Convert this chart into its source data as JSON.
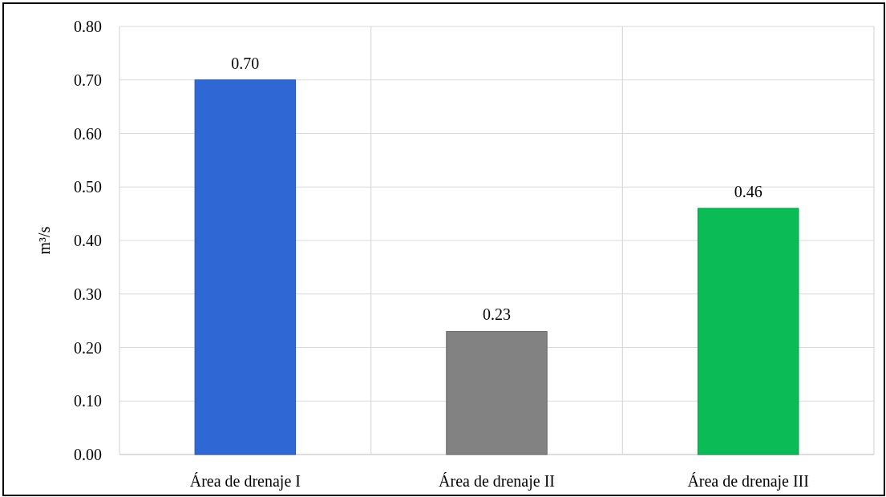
{
  "chart_data": {
    "type": "bar",
    "ylabel": "m³/s",
    "categories": [
      "Área de drenaje I",
      "Área de drenaje II",
      "Área de drenaje III"
    ],
    "values": [
      0.7,
      0.23,
      0.46
    ],
    "colors": [
      "#2f68d4",
      "#828282",
      "#0abb56"
    ],
    "ylim": [
      0,
      0.8
    ],
    "yticks": [
      {
        "value": 0,
        "label": "0.00"
      },
      {
        "value": 0.1,
        "label": "0.10"
      },
      {
        "value": 0.2,
        "label": "0.20"
      },
      {
        "value": 0.3,
        "label": "0.30"
      },
      {
        "value": 0.4,
        "label": "0.40"
      },
      {
        "value": 0.5,
        "label": "0.50"
      },
      {
        "value": 0.6,
        "label": "0.60"
      },
      {
        "value": 0.7,
        "label": "0.70"
      },
      {
        "value": 0.8,
        "label": "0.80"
      }
    ],
    "value_labels": [
      "0.70",
      "0.23",
      "0.46"
    ],
    "grid": true
  }
}
